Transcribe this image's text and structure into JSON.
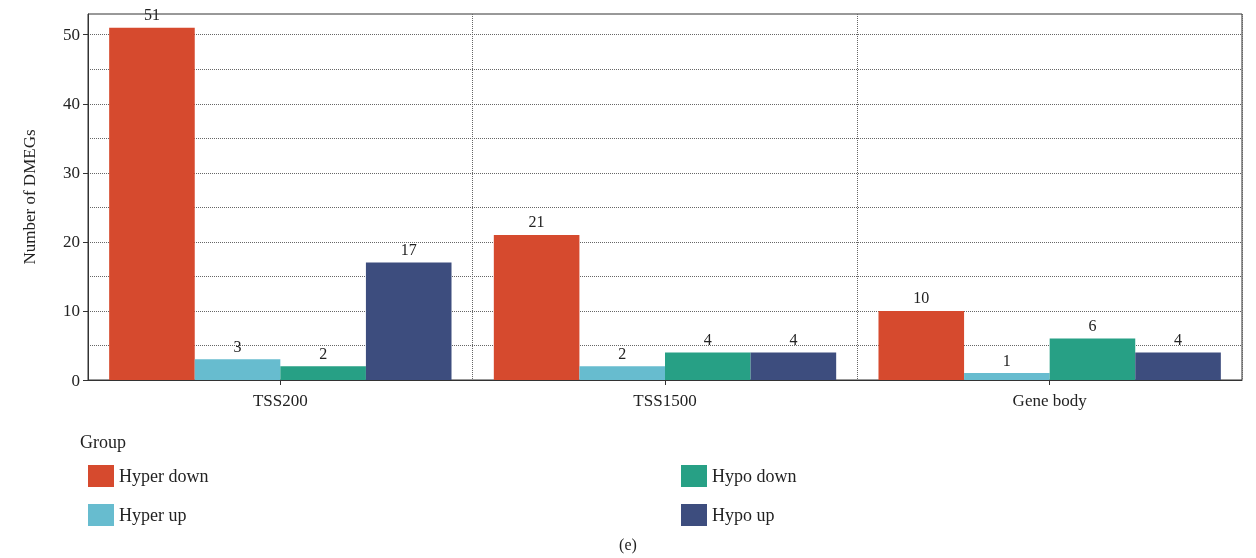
{
  "chart_data": {
    "type": "bar",
    "ylabel": "Number of DMEGs",
    "legend_title": "Group",
    "annotations": [
      "(e)"
    ],
    "categories": [
      "TSS200",
      "TSS1500",
      "Gene body"
    ],
    "series": [
      {
        "name": "Hyper down",
        "color": "#d64a2e",
        "values": [
          51,
          21,
          10
        ]
      },
      {
        "name": "Hyper up",
        "color": "#67bccf",
        "values": [
          3,
          2,
          1
        ]
      },
      {
        "name": "Hypo down",
        "color": "#27a085",
        "values": [
          2,
          4,
          6
        ]
      },
      {
        "name": "Hypo up",
        "color": "#3d4d7e",
        "values": [
          17,
          4,
          4
        ]
      }
    ],
    "ylim": [
      0,
      53
    ],
    "yticks": [
      0,
      10,
      20,
      30,
      40,
      50
    ],
    "grid": true,
    "legend": "bottom",
    "data_labels": true
  }
}
